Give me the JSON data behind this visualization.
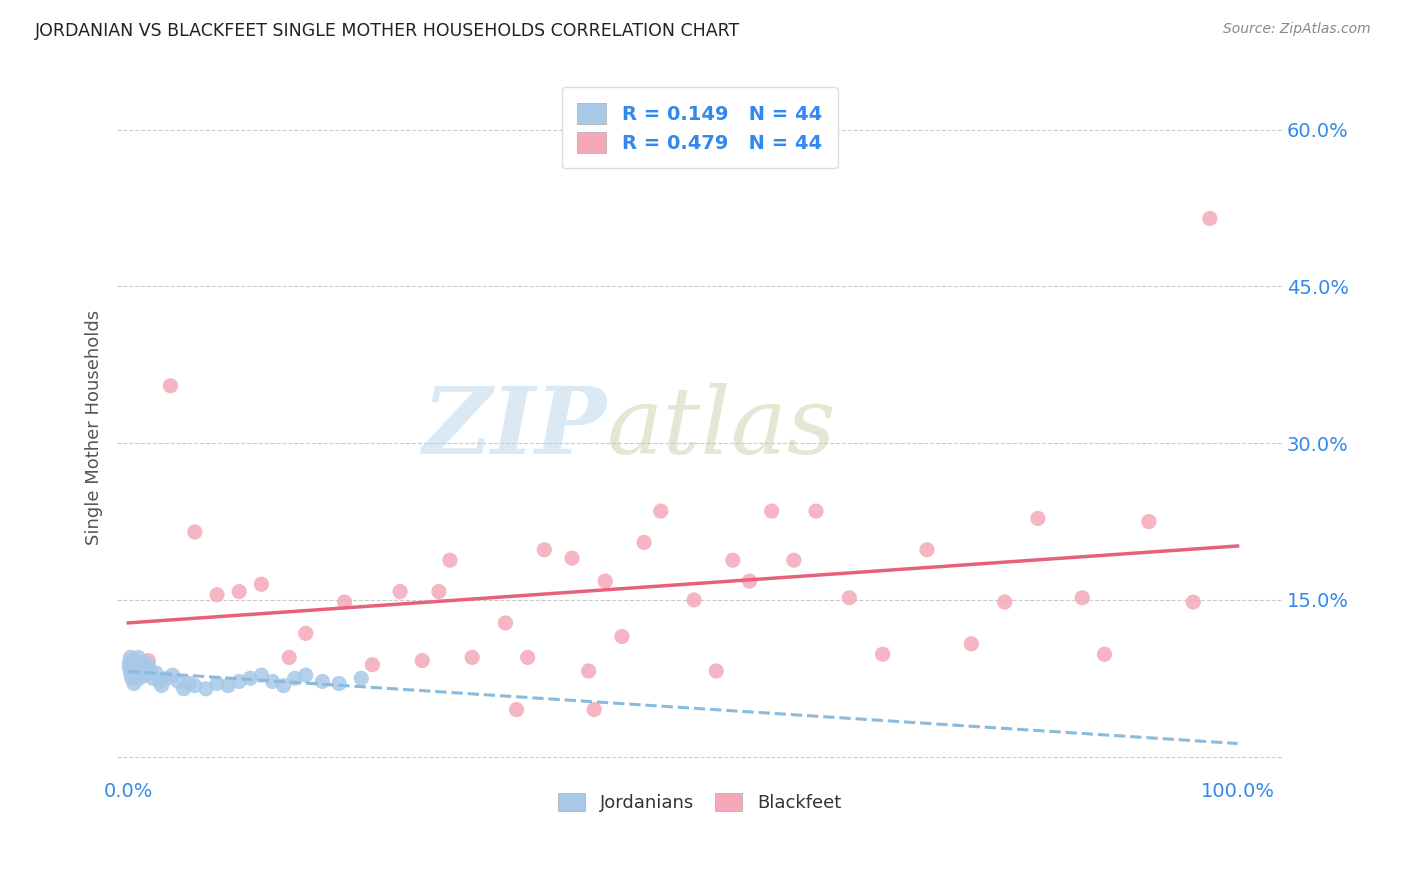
{
  "title": "JORDANIAN VS BLACKFEET SINGLE MOTHER HOUSEHOLDS CORRELATION CHART",
  "source": "Source: ZipAtlas.com",
  "ylabel": "Single Mother Households",
  "R1": 0.149,
  "N1": 44,
  "R2": 0.479,
  "N2": 44,
  "color_jordanian": "#a8c8e8",
  "color_blackfeet": "#f4a8b8",
  "color_jordanian_line": "#88bbdd",
  "color_blackfeet_line": "#e8607a",
  "color_blue_text": "#3388ee",
  "legend_label1": "Jordanians",
  "legend_label2": "Blackfeet",
  "ytick_values": [
    0.0,
    0.15,
    0.3,
    0.45,
    0.6
  ],
  "ytick_labels": [
    "",
    "15.0%",
    "30.0%",
    "45.0%",
    "60.0%"
  ],
  "ylim": [
    -0.02,
    0.65
  ],
  "xlim": [
    -0.01,
    1.04
  ],
  "watermark_text": "ZIPatlas",
  "jordanian_x": [
    0.001,
    0.001,
    0.002,
    0.002,
    0.003,
    0.003,
    0.004,
    0.005,
    0.005,
    0.006,
    0.007,
    0.008,
    0.009,
    0.01,
    0.011,
    0.012,
    0.013,
    0.015,
    0.016,
    0.018,
    0.02,
    0.022,
    0.025,
    0.028,
    0.03,
    0.035,
    0.04,
    0.045,
    0.05,
    0.055,
    0.06,
    0.07,
    0.08,
    0.09,
    0.1,
    0.11,
    0.12,
    0.13,
    0.14,
    0.15,
    0.16,
    0.175,
    0.19,
    0.21
  ],
  "jordanian_y": [
    0.085,
    0.09,
    0.08,
    0.095,
    0.075,
    0.088,
    0.092,
    0.07,
    0.083,
    0.078,
    0.088,
    0.082,
    0.095,
    0.075,
    0.085,
    0.08,
    0.09,
    0.078,
    0.085,
    0.088,
    0.082,
    0.075,
    0.08,
    0.072,
    0.068,
    0.075,
    0.078,
    0.072,
    0.065,
    0.07,
    0.068,
    0.065,
    0.07,
    0.068,
    0.072,
    0.075,
    0.078,
    0.072,
    0.068,
    0.075,
    0.078,
    0.072,
    0.07,
    0.075
  ],
  "blackfeet_x": [
    0.018,
    0.038,
    0.06,
    0.08,
    0.1,
    0.12,
    0.145,
    0.16,
    0.195,
    0.22,
    0.245,
    0.265,
    0.29,
    0.31,
    0.34,
    0.36,
    0.375,
    0.4,
    0.415,
    0.43,
    0.445,
    0.465,
    0.48,
    0.51,
    0.53,
    0.545,
    0.56,
    0.58,
    0.6,
    0.62,
    0.65,
    0.68,
    0.72,
    0.76,
    0.79,
    0.82,
    0.86,
    0.88,
    0.92,
    0.96,
    0.975,
    0.35,
    0.28,
    0.42
  ],
  "blackfeet_y": [
    0.092,
    0.355,
    0.215,
    0.155,
    0.158,
    0.165,
    0.095,
    0.118,
    0.148,
    0.088,
    0.158,
    0.092,
    0.188,
    0.095,
    0.128,
    0.095,
    0.198,
    0.19,
    0.082,
    0.168,
    0.115,
    0.205,
    0.235,
    0.15,
    0.082,
    0.188,
    0.168,
    0.235,
    0.188,
    0.235,
    0.152,
    0.098,
    0.198,
    0.108,
    0.148,
    0.228,
    0.152,
    0.098,
    0.225,
    0.148,
    0.515,
    0.045,
    0.158,
    0.045
  ]
}
